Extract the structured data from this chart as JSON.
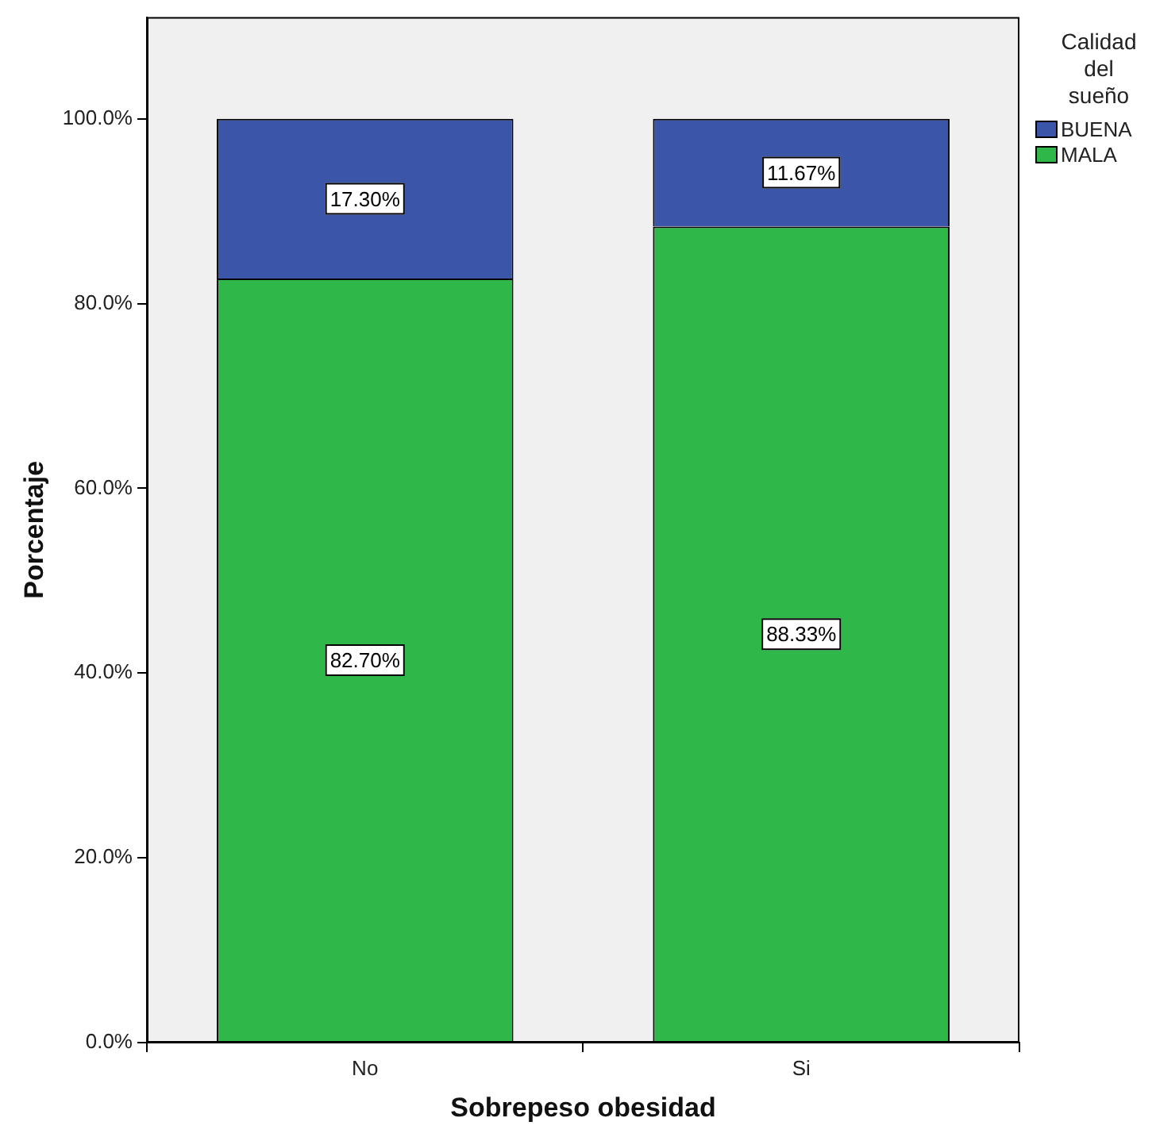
{
  "chart_data": {
    "type": "bar",
    "stacked": true,
    "xlabel": "Sobrepeso obesidad",
    "ylabel": "Porcentaje",
    "legend_title": "Calidad del sueño",
    "legend": "top right",
    "grid": false,
    "categories": [
      "No",
      "Si"
    ],
    "series": [
      {
        "name": "MALA",
        "color": "#30b74a",
        "values": [
          82.7,
          88.33
        ],
        "value_labels": [
          "82.70%",
          "88.33%"
        ]
      },
      {
        "name": "BUENA",
        "color": "#3b55a9",
        "values": [
          17.3,
          11.67
        ],
        "value_labels": [
          "17.30%",
          "11.67%"
        ]
      }
    ],
    "ylim": [
      0,
      111
    ],
    "yticks": [
      {
        "value": 0,
        "label": "0.0%"
      },
      {
        "value": 20,
        "label": "20.0%"
      },
      {
        "value": 40,
        "label": "40.0%"
      },
      {
        "value": 60,
        "label": "60.0%"
      },
      {
        "value": 80,
        "label": "80.0%"
      },
      {
        "value": 100,
        "label": "100.0%"
      }
    ]
  }
}
